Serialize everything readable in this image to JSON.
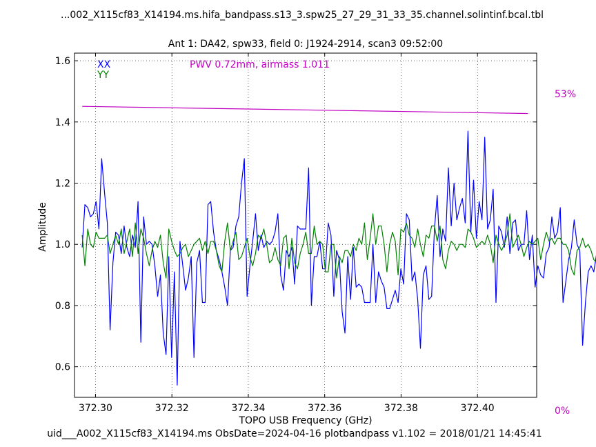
{
  "file_title": "...002_X115cf83_X14194.ms.hifa_bandpass.s13_3.spw25_27_29_31_33_35.channel.solintinf.bcal.tbl",
  "plot_title": "Ant 1: DA42,  spw33,  field 0: J1924-2914,  scan3  09:52:00",
  "footer": "uid___A002_X115cf83_X14194.ms  ObsDate=2024-04-16   plotbandpass v1.102 = 2018/01/21 14:45:41",
  "pwv_label": "PWV 0.72mm, airmass 1.011",
  "right_axis": {
    "top_label": "53%",
    "bottom_label": "0%"
  },
  "chart_data": {
    "type": "line",
    "xlabel": "TOPO USB Frequency (GHz)",
    "ylabel": "Amplitude",
    "xlim": [
      372.2945,
      372.4155
    ],
    "ylim": [
      0.5,
      1.625
    ],
    "xticks": [
      372.3,
      372.32,
      372.34,
      372.36,
      372.38,
      372.4
    ],
    "xtick_labels": [
      "372.30",
      "372.32",
      "372.34",
      "372.36",
      "372.38",
      "372.40"
    ],
    "yticks": [
      0.6,
      0.8,
      1.0,
      1.2,
      1.4,
      1.6
    ],
    "ytick_labels": [
      "0.6",
      "0.8",
      "1.0",
      "1.2",
      "1.4",
      "1.6"
    ],
    "grid": true,
    "legend_position": "top-left",
    "x_start": 372.2965,
    "x_step": 0.000732,
    "series": [
      {
        "name": "XX",
        "color": "#0000ff",
        "values": [
          0.99,
          1.13,
          1.12,
          1.09,
          1.1,
          1.14,
          1.05,
          1.28,
          1.17,
          1.07,
          0.72,
          0.94,
          1.04,
          1.03,
          0.97,
          1.06,
          0.99,
          0.96,
          1.03,
          0.99,
          1.14,
          0.68,
          1.09,
          1.0,
          1.01,
          1.0,
          0.93,
          0.83,
          0.9,
          0.71,
          0.64,
          0.96,
          0.63,
          0.91,
          0.54,
          1.01,
          0.93,
          0.85,
          0.89,
          0.96,
          0.63,
          0.94,
          0.98,
          0.81,
          0.81,
          1.13,
          1.14,
          1.04,
          0.98,
          0.95,
          0.91,
          0.86,
          0.8,
          0.98,
          0.99,
          1.06,
          1.09,
          1.2,
          1.28,
          0.83,
          0.93,
          1.01,
          1.1,
          0.98,
          1.03,
          0.99,
          1.01,
          1.0,
          1.01,
          1.04,
          1.1,
          0.9,
          0.85,
          0.98,
          0.96,
          0.99,
          0.87,
          1.06,
          1.05,
          1.05,
          1.05,
          1.25,
          0.8,
          0.96,
          0.96,
          1.01,
          0.92,
          0.92,
          1.07,
          1.03,
          0.83,
          0.98,
          0.95,
          0.78,
          0.71,
          0.96,
          0.82,
          0.99,
          0.86,
          0.87,
          0.86,
          0.81,
          0.81,
          0.81,
          1.0,
          0.81,
          0.91,
          0.88,
          0.86,
          0.79,
          0.79,
          0.82,
          0.85,
          0.81,
          0.92,
          0.87,
          1.1,
          1.08,
          0.88,
          0.91,
          0.82,
          0.66,
          0.9,
          0.93,
          0.82,
          0.83,
          1.05,
          1.16,
          0.96,
          1.05,
          1.01,
          1.25,
          1.06,
          1.2,
          1.08,
          1.12,
          1.15,
          1.07,
          1.37,
          1.04,
          1.21,
          1.02,
          1.14,
          1.08,
          1.35,
          1.05,
          1.08,
          1.18,
          0.81,
          1.06,
          1.04,
          0.99,
          1.09,
          0.97,
          1.07,
          1.08,
          0.98,
          1.0,
          1.0,
          1.11,
          0.95,
          1.03,
          0.86,
          0.93,
          0.9,
          0.89,
          0.97,
          0.99,
          1.09,
          1.02,
          1.04,
          1.12,
          0.81,
          0.88,
          0.95,
          0.99,
          1.08,
          1.0,
          0.98,
          0.67,
          0.81,
          0.91,
          0.93,
          0.91,
          0.97,
          0.97,
          0.84,
          0.96,
          1.02,
          0.79,
          1.13,
          0.81,
          0.77,
          0.84,
          0.87,
          0.95,
          0.77,
          0.86,
          0.78,
          0.76,
          1.12,
          1.0,
          0.97,
          0.98,
          1.1,
          1.22,
          1.05,
          0.95,
          0.97,
          0.92,
          1.18,
          0.94,
          0.99,
          1.03,
          0.97,
          1.07,
          1.08,
          1.09
        ]
      },
      {
        "name": "YY",
        "color": "#008000",
        "values": [
          1.03,
          0.93,
          1.05,
          1.0,
          0.99,
          1.04,
          1.02,
          1.02,
          1.02,
          1.03,
          0.97,
          1.0,
          1.03,
          1.0,
          1.05,
          0.97,
          1.01,
          1.05,
          0.96,
          1.07,
          0.97,
          1.05,
          1.02,
          0.97,
          0.93,
          0.98,
          1.01,
          0.99,
          1.03,
          0.94,
          0.89,
          1.05,
          1.01,
          0.98,
          0.96,
          0.97,
          0.99,
          1.0,
          0.96,
          0.98,
          1.0,
          1.01,
          1.02,
          0.98,
          1.01,
          0.97,
          1.01,
          1.01,
          0.98,
          0.93,
          0.91,
          1.01,
          1.07,
          0.98,
          1.01,
          1.04,
          0.95,
          0.96,
          0.99,
          1.02,
          0.96,
          0.93,
          0.97,
          1.03,
          1.02,
          1.05,
          1.0,
          0.94,
          0.95,
          0.99,
          0.95,
          0.93,
          1.02,
          1.03,
          0.92,
          1.02,
          0.94,
          0.92,
          0.97,
          1.0,
          1.04,
          0.97,
          0.97,
          1.06,
          1.0,
          1.01,
          1.0,
          0.91,
          0.91,
          1.0,
          1.0,
          0.89,
          0.96,
          0.94,
          0.98,
          0.98,
          0.96,
          1.0,
          0.98,
          1.02,
          1.0,
          1.07,
          0.95,
          1.02,
          1.1,
          1.0,
          1.06,
          1.06,
          1.0,
          0.91,
          1.0,
          1.04,
          1.01,
          0.9,
          1.05,
          1.04,
          1.07,
          1.03,
          1.02,
          0.99,
          1.05,
          1.0,
          0.96,
          1.03,
          1.02,
          1.06,
          1.06,
          1.01,
          1.06,
          0.95,
          0.92,
          0.98,
          1.01,
          1.0,
          0.98,
          1.0,
          1.0,
          0.99,
          1.05,
          1.04,
          1.02,
          0.99,
          1.0,
          1.01,
          1.0,
          1.03,
          1.0,
          0.94,
          1.03,
          1.0,
          0.98,
          1.0,
          1.03,
          1.1,
          0.99,
          1.01,
          1.03,
          1.0,
          0.96,
          0.99,
          1.01,
          1.0,
          1.01,
          1.02,
          0.95,
          1.0,
          1.04,
          1.01,
          1.02,
          1.0,
          1.02,
          1.02,
          1.0,
          1.0,
          0.98,
          0.92,
          0.9,
          0.98,
          0.99,
          1.02,
          0.99,
          1.0,
          0.98,
          0.95,
          0.94,
          0.92,
          1.0,
          1.02,
          1.01,
          1.0,
          1.06,
          1.04,
          0.99,
          0.94,
          0.99,
          1.0,
          1.03,
          1.03,
          0.97,
          0.92,
          1.01,
          0.97,
          1.07,
          0.99,
          0.95,
          1.02,
          1.05,
          0.97,
          0.95,
          0.98,
          0.94,
          0.9,
          0.96,
          1.04,
          0.95,
          0.97
        ]
      }
    ],
    "transmission": {
      "color": "#c000c0",
      "x": [
        372.2965,
        372.4132
      ],
      "percent": [
        51.0,
        49.8
      ],
      "right_axis_range_percent": [
        0,
        53
      ]
    }
  }
}
